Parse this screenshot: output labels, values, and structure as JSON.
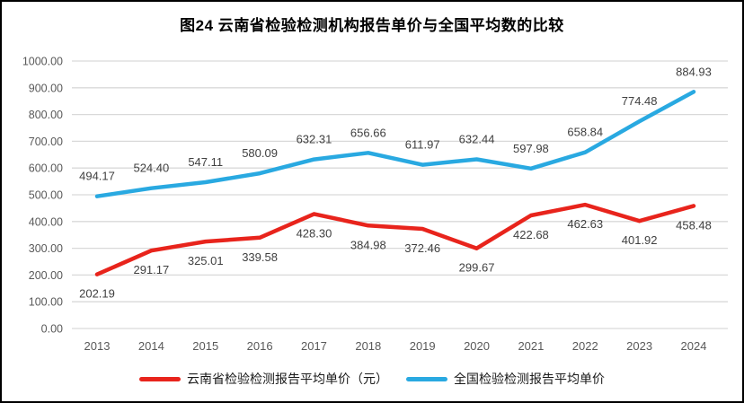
{
  "title": "图24 云南省检验检测机构报告单价与全国平均数的比较",
  "legend": {
    "items": [
      {
        "label": "云南省检验检测报告平均单价（元）",
        "color": "#e8241c"
      },
      {
        "label": "全国检验检测报告平均单价",
        "color": "#29a9e1"
      }
    ]
  },
  "colors": {
    "series_yunnan": "#e8241c",
    "series_national": "#29a9e1",
    "gridline": "#d9d9d9",
    "tick_label": "#595959",
    "data_label": "#404040",
    "frame_border": "#000000"
  },
  "chart_data": {
    "type": "line",
    "title": "图24 云南省检验检测机构报告单价与全国平均数的比较",
    "xlabel": "",
    "ylabel": "",
    "categories": [
      "2013",
      "2014",
      "2015",
      "2016",
      "2017",
      "2018",
      "2019",
      "2020",
      "2021",
      "2022",
      "2023",
      "2024"
    ],
    "series": [
      {
        "name": "云南省检验检测报告平均单价（元）",
        "color": "#e8241c",
        "label_position": "below",
        "values": [
          202.19,
          291.17,
          325.01,
          339.58,
          428.3,
          384.98,
          372.46,
          299.67,
          422.68,
          462.63,
          401.92,
          458.48
        ]
      },
      {
        "name": "全国检验检测报告平均单价",
        "color": "#29a9e1",
        "label_position": "above",
        "values": [
          494.17,
          524.4,
          547.11,
          580.09,
          632.31,
          656.66,
          611.97,
          632.44,
          597.98,
          658.84,
          774.48,
          884.93
        ]
      }
    ],
    "ylim": [
      0,
      1000
    ],
    "ytick_step": 100,
    "ytick_decimals": 2,
    "data_label_decimals": 2,
    "grid": true,
    "legend_position": "bottom"
  }
}
